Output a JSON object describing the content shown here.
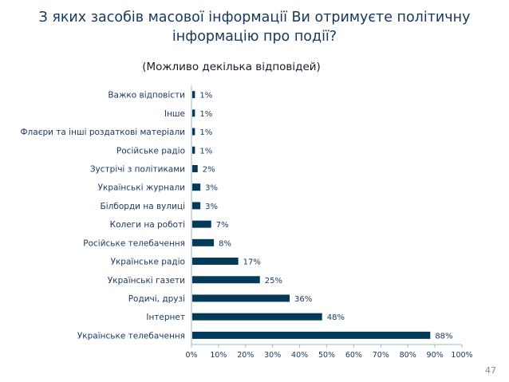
{
  "title_line1": "З яких засобів масової інформації Ви отримуєте політичну",
  "title_line2": "інформацію про події?",
  "subtitle": "(Можливо декілька відповідей)",
  "page_number": "47",
  "chart_data": {
    "type": "bar",
    "orientation": "horizontal",
    "categories": [
      "Важко відповісти",
      "Інше",
      "Флаєри та інші роздаткові матеріали",
      "Російське радіо",
      "Зустрічі з політиками",
      "Українські журнали",
      "Білборди на вулиці",
      "Колеги на роботі",
      "Російське телебачення",
      "Українське радіо",
      "Українські газети",
      "Родичі, друзі",
      "Інтернет",
      "Українське телебачення"
    ],
    "values": [
      1,
      1,
      1,
      1,
      2,
      3,
      3,
      7,
      8,
      17,
      25,
      36,
      48,
      88
    ],
    "value_labels": [
      "1%",
      "1%",
      "1%",
      "1%",
      "2%",
      "3%",
      "3%",
      "7%",
      "8%",
      "17%",
      "25%",
      "36%",
      "48%",
      "88%"
    ],
    "xlim": [
      0,
      100
    ],
    "x_ticks": [
      "0%",
      "10%",
      "20%",
      "30%",
      "40%",
      "50%",
      "60%",
      "70%",
      "80%",
      "90%",
      "100%"
    ],
    "bar_color": "#023a5a",
    "grid": false
  }
}
